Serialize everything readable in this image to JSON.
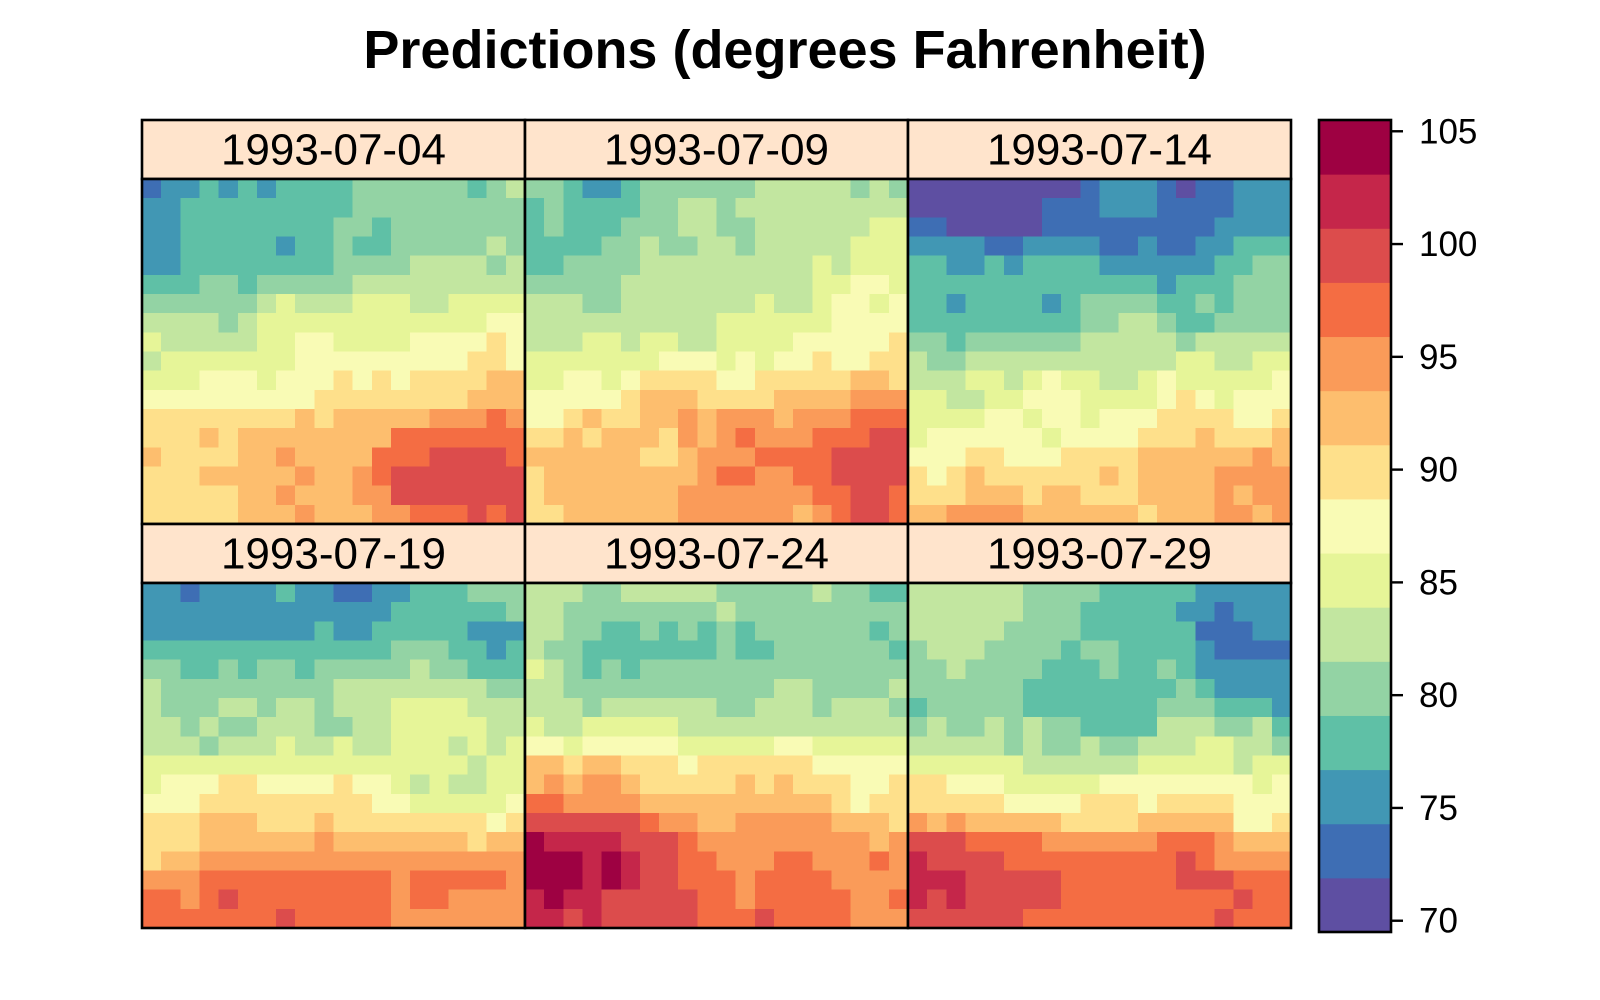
{
  "chart_data": {
    "type": "heatmap",
    "title": "Predictions (degrees Fahrenheit)",
    "layout": {
      "columns": 3,
      "rows": 2
    },
    "grid": {
      "nx": 20,
      "ny": 18
    },
    "strip_color": "#ffe4cc",
    "colorbar": {
      "breaks": [
        70,
        72.5,
        75,
        77.5,
        80,
        82.5,
        85,
        87.5,
        90,
        92.5,
        95,
        97.5,
        100,
        102.5,
        105
      ],
      "colors": [
        "#5e4fa2",
        "#3e6eb4",
        "#4197b4",
        "#5fc0a6",
        "#93d3a4",
        "#c2e6a0",
        "#e6f598",
        "#f9fbb5",
        "#fee08b",
        "#fdbe6e",
        "#fa9b59",
        "#f46d43",
        "#dc4c4c",
        "#c5264a",
        "#9e0142"
      ],
      "tick_values": [
        70,
        75,
        80,
        85,
        90,
        95,
        100,
        105
      ],
      "tick_labels": [
        "70",
        "75",
        "80",
        "85",
        "90",
        "95",
        "100",
        "105"
      ],
      "range": [
        69.5,
        105.5
      ]
    },
    "panels": [
      {
        "label": "1993-07-04",
        "profile": [
          [
            0,
            78.5
          ],
          [
            0.1,
            80
          ],
          [
            0.25,
            82
          ],
          [
            0.35,
            84
          ],
          [
            0.45,
            86
          ],
          [
            0.55,
            89
          ],
          [
            0.7,
            93
          ],
          [
            0.85,
            94
          ],
          [
            1,
            95
          ]
        ],
        "x_trend": 6,
        "hotspots": [
          {
            "x": 0.92,
            "y": 0.85,
            "r": 0.18,
            "amp": 6
          },
          {
            "x": 0.7,
            "y": 0.9,
            "r": 0.15,
            "amp": 3
          }
        ]
      },
      {
        "label": "1993-07-09",
        "profile": [
          [
            0,
            81
          ],
          [
            0.2,
            82
          ],
          [
            0.35,
            84
          ],
          [
            0.5,
            87
          ],
          [
            0.6,
            90
          ],
          [
            0.7,
            93
          ],
          [
            0.85,
            95
          ],
          [
            1,
            95
          ]
        ],
        "x_trend": 5,
        "hotspots": [
          {
            "x": 0.9,
            "y": 0.82,
            "r": 0.15,
            "amp": 5
          },
          {
            "x": 0.5,
            "y": 0.7,
            "r": 0.15,
            "amp": 2.5
          }
        ]
      },
      {
        "label": "1993-07-14",
        "profile": [
          [
            0,
            73
          ],
          [
            0.12,
            74
          ],
          [
            0.25,
            78
          ],
          [
            0.4,
            80
          ],
          [
            0.55,
            85
          ],
          [
            0.7,
            89
          ],
          [
            0.85,
            93
          ],
          [
            1,
            95
          ]
        ],
        "x_trend": 2,
        "hotspots": [
          {
            "x": 0.25,
            "y": 0.05,
            "r": 0.15,
            "amp": -2.5
          },
          {
            "x": 0.9,
            "y": 0.85,
            "r": 0.15,
            "amp": 4
          }
        ]
      },
      {
        "label": "1993-07-19",
        "profile": [
          [
            0,
            77
          ],
          [
            0.15,
            77.5
          ],
          [
            0.25,
            81
          ],
          [
            0.35,
            84
          ],
          [
            0.5,
            85
          ],
          [
            0.6,
            88
          ],
          [
            0.7,
            91
          ],
          [
            0.78,
            93
          ],
          [
            0.85,
            97
          ],
          [
            1,
            97
          ]
        ],
        "x_trend": 1,
        "hotspots": [
          {
            "x": 0.1,
            "y": 0.15,
            "r": 0.2,
            "amp": -2.5
          },
          {
            "x": 0.4,
            "y": 0.82,
            "r": 0.15,
            "amp": 3
          }
        ]
      },
      {
        "label": "1993-07-24",
        "profile": [
          [
            0,
            81
          ],
          [
            0.2,
            80
          ],
          [
            0.35,
            82
          ],
          [
            0.45,
            84
          ],
          [
            0.5,
            89
          ],
          [
            0.6,
            92
          ],
          [
            0.7,
            95
          ],
          [
            0.8,
            98
          ],
          [
            1,
            99
          ]
        ],
        "x_trend": -2,
        "hotspots": [
          {
            "x": 0.03,
            "y": 0.8,
            "r": 0.17,
            "amp": 6
          },
          {
            "x": 0.28,
            "y": 0.78,
            "r": 0.12,
            "amp": 4
          }
        ]
      },
      {
        "label": "1993-07-29",
        "profile": [
          [
            0,
            83
          ],
          [
            0.2,
            81
          ],
          [
            0.35,
            80
          ],
          [
            0.5,
            84
          ],
          [
            0.6,
            88
          ],
          [
            0.68,
            91
          ],
          [
            0.75,
            97
          ],
          [
            0.85,
            100
          ],
          [
            1,
            101
          ]
        ],
        "x_trend": -3,
        "hotspots": [
          {
            "x": 0.8,
            "y": 0.1,
            "r": 0.2,
            "amp": -7
          },
          {
            "x": 0.2,
            "y": 0.85,
            "r": 0.15,
            "amp": 3
          },
          {
            "x": 0.88,
            "y": 0.92,
            "r": 0.12,
            "amp": 3
          }
        ]
      }
    ]
  }
}
